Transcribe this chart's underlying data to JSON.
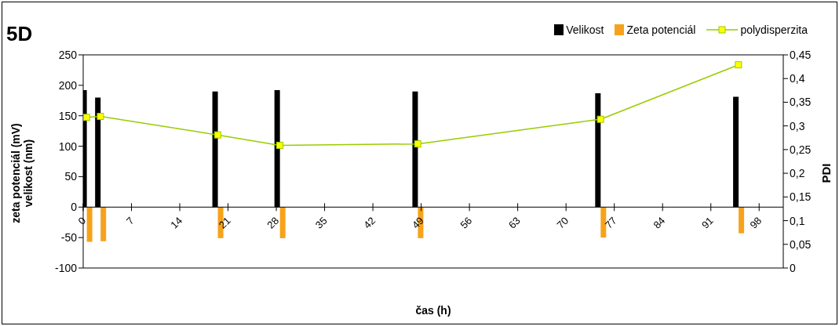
{
  "chart_data": {
    "type": "bar",
    "title": "5D",
    "xlabel": "čas (h)",
    "ylabel": "zeta potenciál (mV)\nvelikost (nm)",
    "y2label": "PDI",
    "x": [
      0.5,
      2.5,
      19.5,
      28.5,
      48.5,
      75,
      95
    ],
    "series": [
      {
        "name": "Velikost",
        "color": "#000000",
        "values": [
          192,
          180,
          190,
          192,
          190,
          187,
          181
        ]
      },
      {
        "name": "Zeta potenciál",
        "color": "#f7a21b",
        "values": [
          -57,
          -56,
          -51,
          -51,
          -51,
          -50,
          -43
        ]
      },
      {
        "name": "polydisperzita",
        "type": "line",
        "axis": "y2",
        "color": "#99cc00",
        "marker": "square",
        "values": [
          0.318,
          0.32,
          0.281,
          0.259,
          0.262,
          0.314,
          0.429
        ]
      }
    ],
    "xlim": [
      0,
      101.5
    ],
    "xticks": [
      0,
      7,
      14,
      21,
      28,
      35,
      42,
      49,
      56,
      63,
      70,
      77,
      84,
      91,
      98
    ],
    "ylim": [
      -100,
      250
    ],
    "yticks": [
      -100,
      -50,
      0,
      50,
      100,
      150,
      200,
      250
    ],
    "y2lim": [
      0,
      0.45
    ],
    "y2ticks": [
      {
        "value": 0,
        "label": "0"
      },
      {
        "value": 0.05,
        "label": "0,05"
      },
      {
        "value": 0.1,
        "label": "0,1"
      },
      {
        "value": 0.15,
        "label": "0,15"
      },
      {
        "value": 0.2,
        "label": "0,2"
      },
      {
        "value": 0.25,
        "label": "0,25"
      },
      {
        "value": 0.3,
        "label": "0,3"
      },
      {
        "value": 0.35,
        "label": "0,35"
      },
      {
        "value": 0.4,
        "label": "0,4"
      },
      {
        "value": 0.45,
        "label": "0,45"
      }
    ],
    "grid": false,
    "legend": "top right"
  }
}
